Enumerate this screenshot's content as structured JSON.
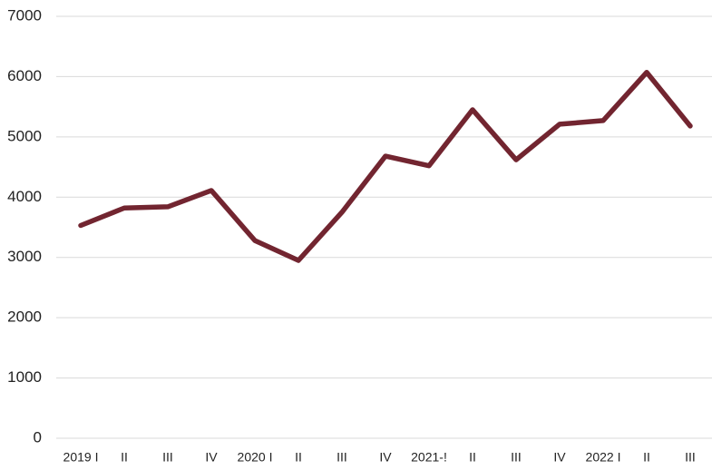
{
  "chart_data": {
    "type": "line",
    "categories": [
      "2019 I",
      "II",
      "III",
      "IV",
      "2020 I",
      "II",
      "III",
      "IV",
      "2021-!",
      "II",
      "III",
      "IV",
      "2022 I",
      "II",
      "III"
    ],
    "series": [
      {
        "color": "#722530",
        "values": [
          3530,
          3820,
          3840,
          4110,
          3280,
          2950,
          3750,
          4680,
          4520,
          5450,
          4620,
          5210,
          5270,
          6070,
          5180
        ]
      }
    ],
    "ylim": [
      0,
      7000
    ],
    "yticks": [
      0,
      1000,
      2000,
      3000,
      4000,
      5000,
      6000,
      7000
    ],
    "grid": true
  }
}
